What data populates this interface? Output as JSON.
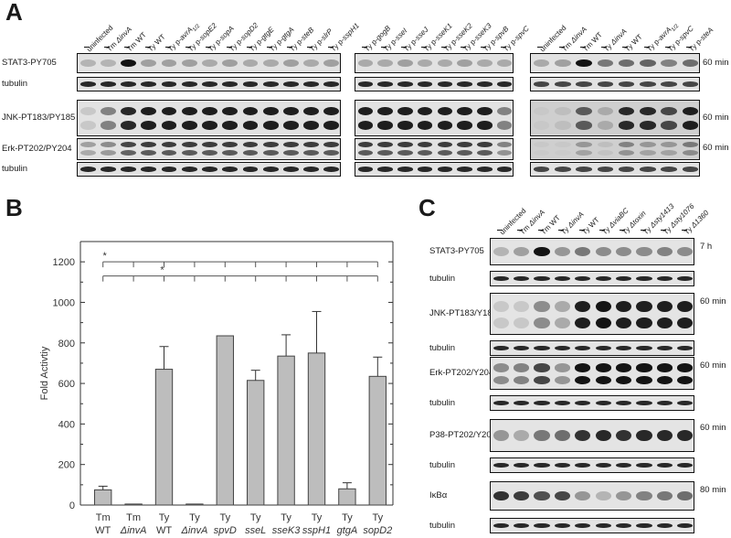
{
  "panels": {
    "A": {
      "letter": "A",
      "group1_lanes": [
        {
          "main": "uninfected"
        },
        {
          "main": "Tm ",
          "italic": "ΔinvA"
        },
        {
          "main": "Tm WT"
        },
        {
          "main": "Ty WT"
        },
        {
          "main": "Ty p-",
          "italic": "avrA",
          "sub": "1/2"
        },
        {
          "main": "Ty p-",
          "italic": "sopE2"
        },
        {
          "main": "Ty p-",
          "italic": "sopA"
        },
        {
          "main": "Ty p-",
          "italic": "sopD2"
        },
        {
          "main": "Ty p-",
          "italic": "gtgE"
        },
        {
          "main": "Ty p-",
          "italic": "gtgA"
        },
        {
          "main": "Ty p-",
          "italic": "steB"
        },
        {
          "main": "Ty p-",
          "italic": "slrP"
        },
        {
          "main": "Ty p-",
          "italic": "sspH1"
        }
      ],
      "group2_lanes": [
        {
          "main": "Ty p-",
          "italic": "gogB"
        },
        {
          "main": "Ty p-",
          "italic": "sseI"
        },
        {
          "main": "Ty p-",
          "italic": "sseJ"
        },
        {
          "main": "Ty p-",
          "italic": "sseK1"
        },
        {
          "main": "Ty p-",
          "italic": "sseK2"
        },
        {
          "main": "Ty p-",
          "italic": "sseK3"
        },
        {
          "main": "Ty p-",
          "italic": "spvB"
        },
        {
          "main": "Ty p-",
          "italic": "spvC"
        }
      ],
      "group3_lanes": [
        {
          "main": "uninfected"
        },
        {
          "main": "Tm ",
          "italic": "ΔinvA"
        },
        {
          "main": "Tm WT"
        },
        {
          "main": "Ty ",
          "italic": "ΔinvA"
        },
        {
          "main": "Ty WT"
        },
        {
          "main": "Ty p-",
          "italic": "avrA",
          "sub": "1/2"
        },
        {
          "main": "Ty p-",
          "italic": "spvC"
        },
        {
          "main": "Ty p-",
          "italic": "steA"
        }
      ],
      "rows": [
        "STAT3-PY705",
        "tubulin",
        "JNK-PT183/PY185",
        "Erk-PT202/PY204",
        "tubulin"
      ],
      "times": [
        "60 min",
        "60 min",
        "60 min"
      ]
    },
    "B": {
      "letter": "B",
      "significance_marks": [
        "*",
        "*"
      ]
    },
    "C": {
      "letter": "C",
      "lanes": [
        {
          "main": "uninfected"
        },
        {
          "main": "Tm ",
          "italic": "ΔinvA"
        },
        {
          "main": "Tm WT"
        },
        {
          "main": "Ty ",
          "italic": "ΔinvA"
        },
        {
          "main": "Ty WT"
        },
        {
          "main": "Ty ",
          "italic": "ΔviaBC"
        },
        {
          "main": "Ty ",
          "italic": "Δtoxin"
        },
        {
          "main": "Ty ",
          "italic": "Δsty1413"
        },
        {
          "main": "Ty ",
          "italic": "Δsty1076"
        },
        {
          "main": "Ty ",
          "italic": "Δ1360"
        }
      ],
      "rows": [
        "STAT3-PY705",
        "tubulin",
        "JNK-PT183/Y185",
        "tubulin",
        "Erk-PT202/Y204",
        "tubulin",
        "P38-PT202/Y204",
        "tubulin",
        "IκBα",
        "tubulin"
      ],
      "times": [
        "7 h",
        "60 min",
        "60 min",
        "60 min",
        "80 min"
      ]
    }
  },
  "chart_data": {
    "type": "bar",
    "ylabel": "Fold Activtiy",
    "xlabel": "",
    "ylim": [
      0,
      1300
    ],
    "yticks": [
      0,
      200,
      400,
      600,
      800,
      1000,
      1200
    ],
    "categories": [
      {
        "line1": "Tm",
        "line2": "WT",
        "line2_italic": false
      },
      {
        "line1": "Tm",
        "line2": "ΔinvA",
        "line2_italic": true
      },
      {
        "line1": "Ty",
        "line2": "WT",
        "line2_italic": false
      },
      {
        "line1": "Ty",
        "line2": "ΔinvA",
        "line2_italic": true
      },
      {
        "line1": "Ty",
        "line2": "spvD",
        "line2_italic": true
      },
      {
        "line1": "Ty",
        "line2": "sseL",
        "line2_italic": true
      },
      {
        "line1": "Ty",
        "line2": "sseK3",
        "line2_italic": true
      },
      {
        "line1": "Ty",
        "line2": "sspH1",
        "line2_italic": true
      },
      {
        "line1": "Ty",
        "line2": "gtgA",
        "line2_italic": true
      },
      {
        "line1": "Ty",
        "line2": "sopD2",
        "line2_italic": true
      }
    ],
    "values": [
      75,
      5,
      670,
      5,
      835,
      615,
      735,
      750,
      80,
      635
    ],
    "errors": [
      18,
      0,
      112,
      0,
      0,
      50,
      105,
      205,
      30,
      95
    ],
    "bar_color": "#bdbdbd",
    "significance": [
      {
        "label": "*",
        "from": 0,
        "to": 9,
        "level": 1200
      },
      {
        "label": "*",
        "from": 0,
        "to": 9,
        "level": 1130
      }
    ]
  }
}
